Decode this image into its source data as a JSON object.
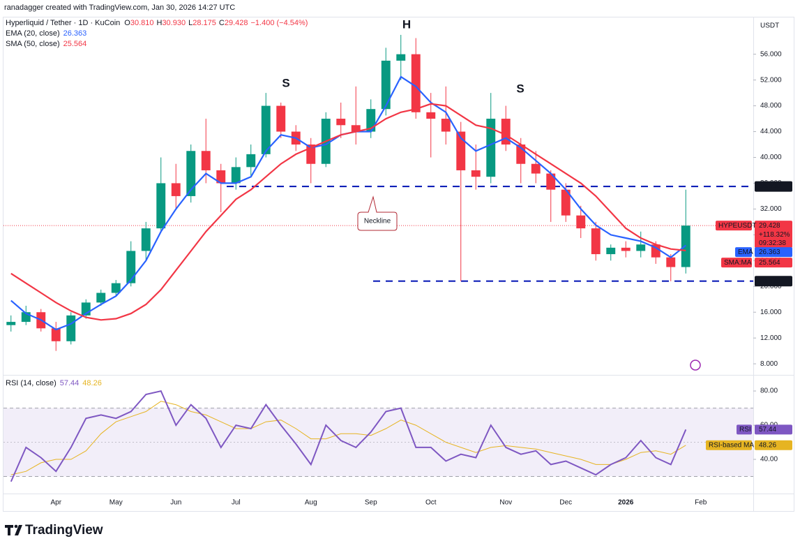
{
  "header": "ranadagger created with TradingView.com, Jan 30, 2026 14:27 UTC",
  "footer": "TradingView",
  "chart_data": {
    "type": "candlestick",
    "symbol": "Hyperliquid / Tether · 1D · KuCoin",
    "ohlc_legend": [
      {
        "key": "O",
        "value": "30.810"
      },
      {
        "key": "H",
        "value": "30.930"
      },
      {
        "key": "L",
        "value": "28.175"
      },
      {
        "key": "C",
        "value": "29.428"
      }
    ],
    "change": "−1.400 (−4.54%)",
    "currency": "USDT",
    "up_color": "#089981",
    "down_color": "#f23645",
    "grid": false,
    "categories": [
      null,
      null,
      null,
      "Apr",
      null,
      null,
      null,
      "May",
      null,
      null,
      null,
      "Jun",
      null,
      null,
      null,
      "Jul",
      null,
      null,
      null,
      null,
      "Aug",
      null,
      null,
      null,
      "Sep",
      null,
      null,
      null,
      "Oct",
      null,
      null,
      null,
      null,
      "Nov",
      null,
      null,
      null,
      "Dec",
      null,
      null,
      null,
      "2026",
      null,
      null,
      null,
      null,
      "Feb",
      null,
      null,
      null
    ],
    "open": [
      14,
      14.5,
      16,
      13.5,
      11.5,
      15.5,
      17.5,
      19,
      20.5,
      25.5,
      29,
      36,
      34,
      41,
      38,
      36,
      38.5,
      40.5,
      48,
      44,
      42,
      39,
      46,
      45,
      44,
      47.5,
      55,
      56,
      47,
      46,
      44,
      38,
      37,
      46,
      42,
      39,
      37.5,
      35,
      31,
      29,
      25,
      26,
      25.5,
      26.5,
      24.5,
      23,
      null,
      null,
      null,
      null
    ],
    "high": [
      15.5,
      17,
      16.5,
      14.5,
      16,
      18,
      19.5,
      21,
      27,
      30,
      40,
      39,
      42,
      46,
      39,
      40,
      42,
      50,
      48.5,
      45,
      43,
      47,
      48.5,
      51,
      49,
      57,
      59,
      58.5,
      50,
      51,
      45.5,
      42,
      50,
      48,
      43,
      41,
      38,
      36,
      32.5,
      30,
      26.5,
      27,
      28.5,
      27,
      25,
      35,
      null,
      null,
      null,
      null
    ],
    "low": [
      13,
      14,
      13,
      10,
      11,
      15,
      17,
      18.5,
      20,
      24,
      28.5,
      32,
      33,
      36,
      31.5,
      35,
      37,
      40,
      43,
      41,
      36,
      38.5,
      43,
      42,
      43,
      46.5,
      52,
      46,
      40,
      42,
      20.8,
      35,
      36,
      41,
      36,
      36,
      30,
      30,
      27.5,
      24,
      24,
      24.5,
      24.5,
      23.5,
      20.8,
      22,
      null,
      null,
      null,
      null
    ],
    "close": [
      14.5,
      16,
      13.5,
      11.5,
      15.5,
      17.5,
      19,
      20.5,
      25.5,
      29,
      36,
      34,
      41,
      38,
      36,
      38.5,
      40.5,
      48,
      44,
      42,
      39,
      46,
      45,
      44,
      47.5,
      55,
      56,
      47,
      46,
      44,
      38,
      37,
      46,
      42,
      39,
      37.5,
      35,
      31,
      29,
      25,
      26,
      25.5,
      26.5,
      24.5,
      23,
      29.428,
      null,
      null,
      null,
      null
    ],
    "series": [
      {
        "name": "EMA (20, close)",
        "badge": "EMA",
        "color": "#2962ff",
        "last": {
          "value": 26.363,
          "label": "26.363"
        },
        "values": [
          17.8,
          15.8,
          14.8,
          13.3,
          14.2,
          15.8,
          17.2,
          18.5,
          21,
          24,
          28.5,
          32,
          35,
          37.5,
          36,
          36,
          37,
          41,
          43.5,
          43,
          41.5,
          42,
          43.5,
          44,
          44,
          48,
          52.5,
          51,
          48.5,
          47,
          43,
          41,
          42,
          43,
          41.5,
          39.5,
          37.5,
          35,
          32,
          29.5,
          28,
          27.5,
          27,
          26,
          24.5,
          26.363,
          null,
          null,
          null,
          null
        ]
      },
      {
        "name": "SMA (50, close)",
        "badge": "SMA:MA",
        "color": "#f23645",
        "last": {
          "value": 25.564,
          "label": "25.564"
        },
        "values": [
          22,
          20.5,
          19,
          17.5,
          16.2,
          15.2,
          14.8,
          15,
          15.8,
          17.2,
          19.5,
          22.5,
          25.5,
          28.5,
          31,
          33.5,
          35,
          37,
          39,
          40.5,
          41.5,
          42.5,
          43.5,
          44,
          44.5,
          46,
          47,
          47.5,
          48.3,
          48,
          46.5,
          45,
          44.5,
          43.5,
          42,
          40.5,
          39,
          37.5,
          36,
          34,
          31.5,
          29,
          27.5,
          26.5,
          25.8,
          25.564,
          null,
          null,
          null,
          null
        ]
      }
    ],
    "price_badge": {
      "name": "HYPEUSDT",
      "value": 29.428,
      "label": "29.428",
      "change": "+118.32%",
      "countdown": "09:32:38"
    },
    "levels": [
      {
        "value": 35.5,
        "label": "35.500"
      },
      {
        "value": 20.82,
        "label": "20.820"
      }
    ],
    "annotations": {
      "head": "H",
      "left_shoulder": "S",
      "right_shoulder": "S",
      "neckline": "Neckline"
    },
    "ylim": [
      6.5,
      61.7
    ],
    "yticks": [
      {
        "value": 8,
        "label": "8.000"
      },
      {
        "value": 12,
        "label": "12.000"
      },
      {
        "value": 16,
        "label": "16.000"
      },
      {
        "value": 20,
        "label": "20.000"
      },
      {
        "value": 24,
        "label": "24.000"
      },
      {
        "value": 28,
        "label": "28.000"
      },
      {
        "value": 32,
        "label": "32.000"
      },
      {
        "value": 36,
        "label": "36.000"
      },
      {
        "value": 40,
        "label": "40.000"
      },
      {
        "value": 44,
        "label": "44.000"
      },
      {
        "value": 48,
        "label": "48.000"
      },
      {
        "value": 52,
        "label": "52.000"
      },
      {
        "value": 56,
        "label": "56.000"
      }
    ],
    "rsi": {
      "title": "RSI (14, close)",
      "ylim": [
        20,
        88.2
      ],
      "yticks": [
        {
          "value": 40,
          "label": "40.00"
        },
        {
          "value": 60,
          "label": "60.00"
        },
        {
          "value": 80,
          "label": "80.00"
        }
      ],
      "bands": [
        30,
        50,
        70
      ],
      "series": [
        {
          "name": "RSI",
          "color": "#7e57c2",
          "last": {
            "value": 57.44,
            "label": "57.44"
          },
          "values": [
            27,
            47,
            41,
            33,
            47,
            64,
            66,
            64,
            68,
            78,
            80,
            60,
            72,
            64,
            47,
            60,
            58,
            72,
            60,
            49,
            37,
            60,
            51,
            47,
            56,
            68,
            70,
            47,
            47,
            39,
            43,
            41,
            60,
            47,
            43,
            45,
            37,
            39,
            35,
            31,
            37,
            41,
            51,
            41,
            37,
            57.44,
            null,
            null,
            null,
            null
          ]
        },
        {
          "name": "RSI-based MA",
          "color": "#e6b422",
          "last": {
            "value": 48.26,
            "label": "48.26"
          },
          "values": [
            31,
            33,
            38,
            40,
            40,
            45,
            55,
            62,
            65,
            68,
            74,
            72,
            68,
            66,
            62,
            58,
            58,
            62,
            63,
            58,
            52,
            52,
            55,
            55,
            54,
            58,
            63,
            60,
            55,
            50,
            47,
            44,
            47,
            48,
            47,
            46,
            44,
            42,
            40,
            37,
            37,
            40,
            44,
            45,
            43,
            48.26,
            null,
            null,
            null,
            null
          ]
        }
      ]
    }
  }
}
